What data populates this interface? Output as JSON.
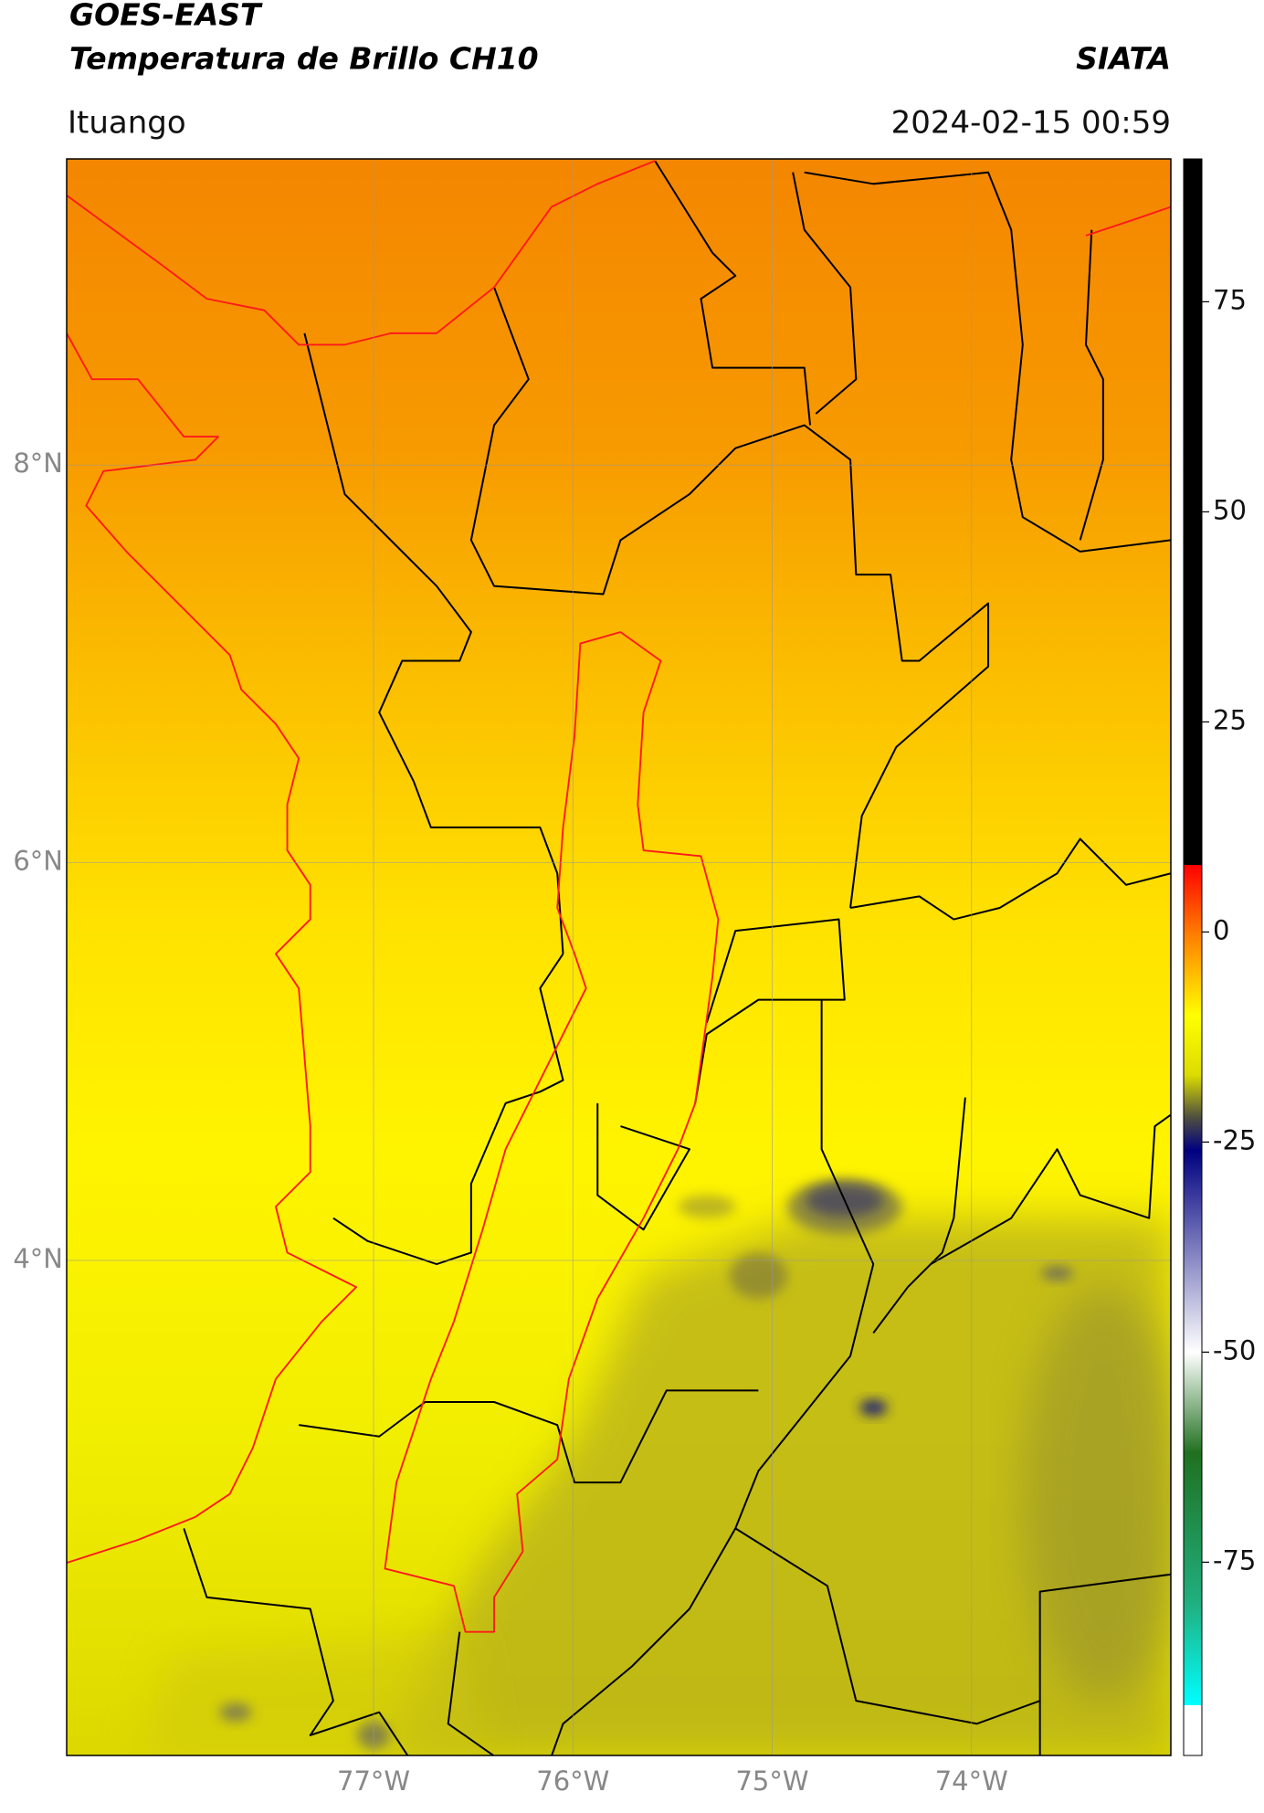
{
  "chart_data": {
    "type": "map",
    "title": "GOES-EAST",
    "subtitle": "Temperatura de Brillo CH10",
    "source": "SIATA",
    "location": "Ituango",
    "timestamp": "2024-02-15 00:59",
    "xlim": [
      -78.54,
      -73.0
    ],
    "ylim": [
      1.51,
      9.54
    ],
    "xticks": [
      {
        "value": -77,
        "label": "77°W"
      },
      {
        "value": -76,
        "label": "76°W"
      },
      {
        "value": -75,
        "label": "75°W"
      },
      {
        "value": -74,
        "label": "74°W"
      }
    ],
    "yticks": [
      {
        "value": 8,
        "label": "8°N"
      },
      {
        "value": 6,
        "label": "6°N"
      },
      {
        "value": 4,
        "label": "4°N"
      }
    ],
    "grid": true,
    "colorbar": {
      "lim": [
        -98,
        92
      ],
      "ticks": [
        75,
        50,
        25,
        0,
        -25,
        -50,
        -75
      ],
      "stops": [
        {
          "value": 92,
          "color": "#000000"
        },
        {
          "value": 8,
          "color": "#000000"
        },
        {
          "value": 8,
          "color": "#ff0000"
        },
        {
          "value": 0,
          "color": "#ff7a00"
        },
        {
          "value": -10,
          "color": "#ffff00"
        },
        {
          "value": -17,
          "color": "#dcdc00"
        },
        {
          "value": -22,
          "color": "#505040"
        },
        {
          "value": -26,
          "color": "#000080"
        },
        {
          "value": -38,
          "color": "#8080c0"
        },
        {
          "value": -50,
          "color": "#ffffff"
        },
        {
          "value": -62,
          "color": "#207020"
        },
        {
          "value": -80,
          "color": "#20b080"
        },
        {
          "value": -92,
          "color": "#00ffff"
        },
        {
          "value": -92,
          "color": "#ffffff"
        },
        {
          "value": -98,
          "color": "#ffffff"
        }
      ]
    }
  }
}
